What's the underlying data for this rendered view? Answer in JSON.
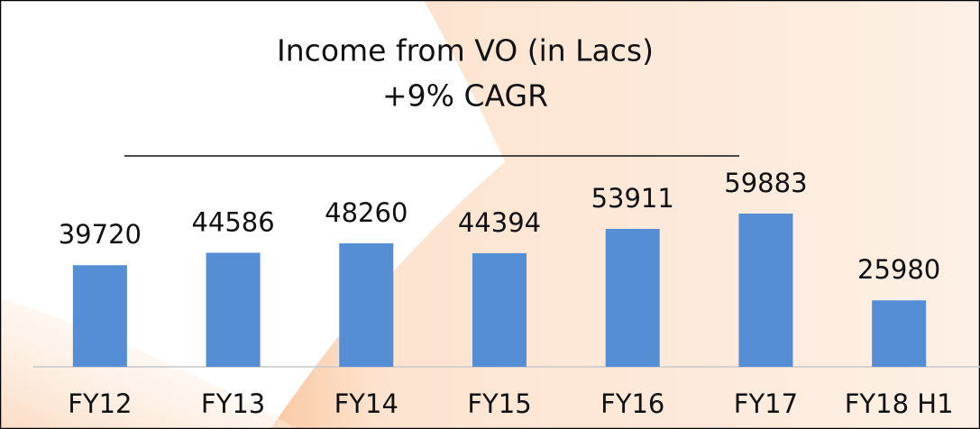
{
  "chart_data": {
    "type": "bar",
    "title": "Income from VO (in Lacs)",
    "subtitle": "+9% CAGR",
    "categories": [
      "FY12",
      "FY13",
      "FY14",
      "FY15",
      "FY16",
      "FY17",
      "FY18 H1"
    ],
    "values": [
      39720,
      44586,
      48260,
      44394,
      53911,
      59883,
      25980
    ],
    "color": "#558ed5"
  }
}
